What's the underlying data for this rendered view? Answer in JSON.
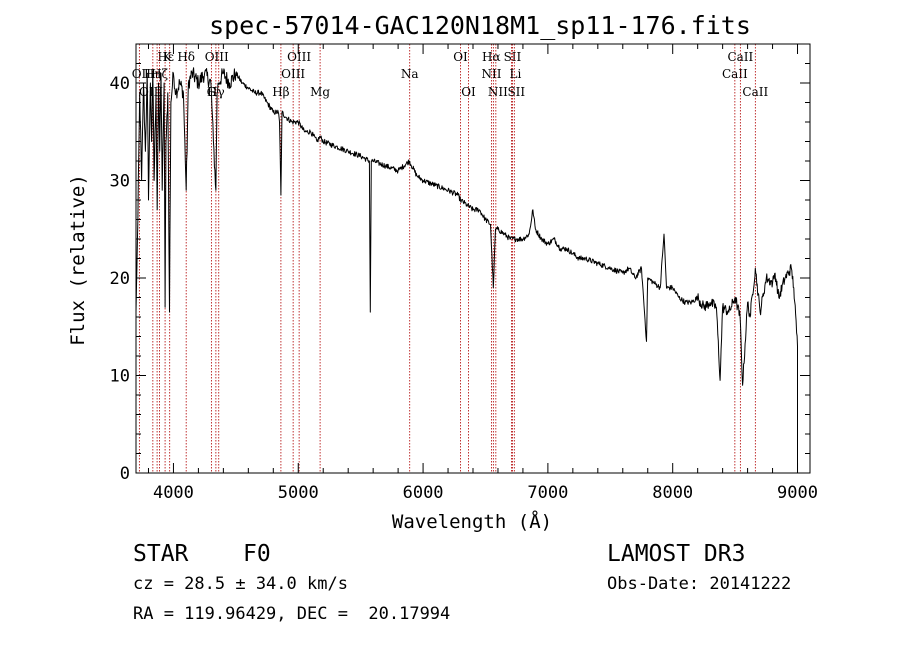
{
  "chart_data": {
    "type": "line",
    "title": "spec-57014-GAC120N18M1_sp11-176.fits",
    "xlabel": "Wavelength (Å)",
    "ylabel": "Flux (relative)",
    "xlim": [
      3700,
      9100
    ],
    "ylim": [
      0,
      44
    ],
    "xticks": [
      4000,
      5000,
      6000,
      7000,
      8000,
      9000
    ],
    "yticks": [
      0,
      10,
      20,
      30,
      40
    ],
    "series": [
      {
        "name": "spectrum",
        "x": [
          3700,
          3715,
          3730,
          3745,
          3760,
          3775,
          3790,
          3800,
          3815,
          3825,
          3835,
          3845,
          3860,
          3870,
          3880,
          3890,
          3900,
          3910,
          3925,
          3933,
          3940,
          3955,
          3968,
          3980,
          4000,
          4020,
          4050,
          4080,
          4102,
          4120,
          4150,
          4200,
          4250,
          4300,
          4320,
          4340,
          4350,
          4360,
          4400,
          4450,
          4500,
          4550,
          4600,
          4650,
          4700,
          4750,
          4800,
          4840,
          4850,
          4861,
          4870,
          4900,
          4950,
          5000,
          5050,
          5100,
          5150,
          5175,
          5200,
          5300,
          5400,
          5500,
          5570,
          5577,
          5585,
          5600,
          5700,
          5800,
          5890,
          5950,
          6000,
          6100,
          6200,
          6280,
          6300,
          6350,
          6400,
          6450,
          6500,
          6540,
          6563,
          6580,
          6600,
          6650,
          6700,
          6750,
          6800,
          6850,
          6880,
          6900,
          6950,
          7000,
          7050,
          7100,
          7150,
          7200,
          7250,
          7300,
          7400,
          7500,
          7600,
          7650,
          7700,
          7750,
          7790,
          7800,
          7850,
          7900,
          7930,
          7950,
          8000,
          8050,
          8100,
          8150,
          8200,
          8250,
          8300,
          8350,
          8380,
          8400,
          8450,
          8500,
          8540,
          8560,
          8600,
          8620,
          8662,
          8700,
          8750,
          8800,
          8820,
          8850,
          8900,
          8950,
          8970,
          9000
        ],
        "values": [
          16.5,
          26,
          39,
          30,
          40,
          33,
          41,
          28,
          40,
          34,
          41,
          30,
          39,
          27,
          40,
          33,
          41,
          29,
          40,
          17,
          34,
          39,
          16.5,
          38,
          41,
          39,
          40,
          39,
          29,
          40,
          41,
          40,
          41,
          40,
          34,
          29,
          39,
          40,
          41,
          40,
          41,
          40,
          39.5,
          39,
          39,
          38,
          37,
          37,
          36,
          28.5,
          37,
          36.5,
          36,
          36,
          35,
          35,
          34,
          34.5,
          34,
          33.5,
          33,
          32.5,
          32,
          16.5,
          32,
          32,
          31.5,
          31,
          32,
          30.5,
          30,
          29.5,
          29,
          28.5,
          28,
          27.5,
          27,
          27,
          26,
          25.5,
          19,
          25,
          25,
          24.5,
          24,
          24,
          24,
          24.5,
          27,
          25,
          24,
          23.5,
          24,
          23,
          23,
          22.5,
          22,
          22,
          21.5,
          21,
          20.5,
          21,
          20,
          21,
          13.5,
          20,
          19.5,
          19,
          24.5,
          19,
          19,
          18,
          17.5,
          17.5,
          18,
          17,
          17.5,
          17,
          9.5,
          17,
          16.5,
          18,
          16,
          9,
          17.5,
          16,
          21,
          16.5,
          20,
          19.5,
          20.5,
          18,
          20,
          21,
          19,
          13
        ]
      }
    ],
    "emission_lines": [
      {
        "label": "Hε",
        "wavelength": 3970,
        "row": 1,
        "offset": -4
      },
      {
        "label": "K",
        "wavelength": 3933,
        "row": 1,
        "offset": 2
      },
      {
        "label": "Hδ",
        "wavelength": 4102,
        "row": 1,
        "offset": 0
      },
      {
        "label": "OII",
        "wavelength": 3727,
        "row": 2,
        "offset": 2
      },
      {
        "label": "Hη",
        "wavelength": 3835,
        "row": 2,
        "offset": 0
      },
      {
        "label": "Hζ",
        "wavelength": 3889,
        "row": 2,
        "offset": 0
      },
      {
        "label": "OIII",
        "wavelength": 4363,
        "row": 1,
        "offset": -2
      },
      {
        "label": "OIII",
        "wavelength": 3869,
        "row": 3,
        "offset": -6
      },
      {
        "label": "G",
        "wavelength": 4304,
        "row": 3,
        "offset": 0
      },
      {
        "label": "Hγ",
        "wavelength": 4340,
        "row": 3,
        "offset": 0
      },
      {
        "label": "Hβ",
        "wavelength": 4861,
        "row": 3,
        "offset": 0
      },
      {
        "label": "OIII",
        "wavelength": 5007,
        "row": 1,
        "offset": 0
      },
      {
        "label": "OIII",
        "wavelength": 4959,
        "row": 2,
        "offset": 0
      },
      {
        "label": "Mg",
        "wavelength": 5175,
        "row": 3,
        "offset": 0
      },
      {
        "label": "Na",
        "wavelength": 5893,
        "row": 2,
        "offset": 0
      },
      {
        "label": "OI",
        "wavelength": 6300,
        "row": 1,
        "offset": 0
      },
      {
        "label": "OI",
        "wavelength": 6364,
        "row": 3,
        "offset": 0
      },
      {
        "label": "Hα",
        "wavelength": 6563,
        "row": 1,
        "offset": -2
      },
      {
        "label": "SII",
        "wavelength": 6716,
        "row": 1,
        "offset": 0
      },
      {
        "label": "NII",
        "wavelength": 6548,
        "row": 2,
        "offset": 0
      },
      {
        "label": "Li",
        "wavelength": 6708,
        "row": 2,
        "offset": 4
      },
      {
        "label": "NII",
        "wavelength": 6583,
        "row": 3,
        "offset": 2
      },
      {
        "label": "SII",
        "wavelength": 6731,
        "row": 3,
        "offset": 2
      },
      {
        "label": "CaII",
        "wavelength": 8498,
        "row": 2,
        "offset": 0
      },
      {
        "label": "CaII",
        "wavelength": 8542,
        "row": 1,
        "offset": 0
      },
      {
        "label": "CaII",
        "wavelength": 8662,
        "row": 3,
        "offset": 0
      }
    ],
    "colors": {
      "spectrum": "#000000",
      "lines": "#b00000",
      "axes": "#000000"
    }
  },
  "info": {
    "object_class": "STAR",
    "subclass": "F0",
    "survey": "LAMOST DR3",
    "redshift": "cz = 28.5 ± 34.0 km/s",
    "obs_date": "Obs-Date: 20141222",
    "coords": "RA = 119.96429, DEC =  20.17994"
  }
}
